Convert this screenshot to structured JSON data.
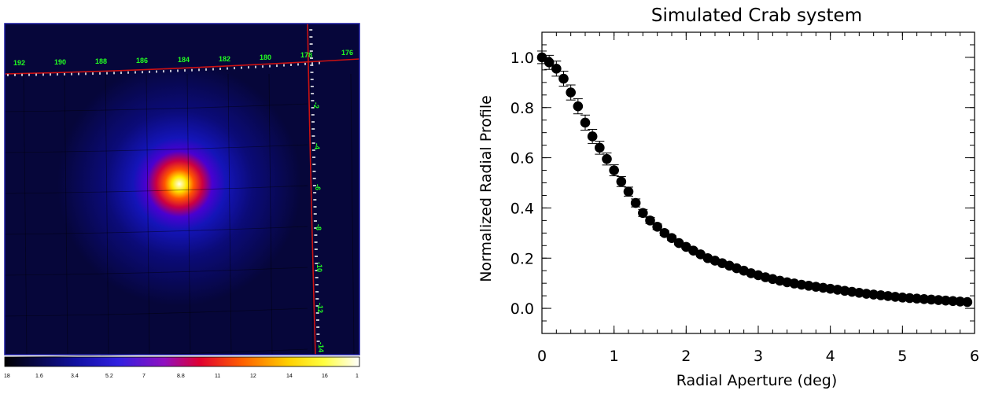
{
  "skymap": {
    "longitude_labels": [
      "192",
      "190",
      "188",
      "186",
      "184",
      "182",
      "180",
      "178",
      "176"
    ],
    "latitude_labels": [
      "-2",
      "-4",
      "-6",
      "-8",
      "-10",
      "-12",
      "-14"
    ],
    "colorbar_labels": [
      "18",
      "1.6",
      "3.4",
      "5.2",
      "7",
      "8.8",
      "11",
      "12",
      "14",
      "16",
      "1"
    ],
    "colors": {
      "background": "#06063a",
      "frame": "#1a1aa0",
      "grid_lines": "#cc1111",
      "labels": "#22ff22"
    }
  },
  "chart_data": {
    "type": "scatter",
    "title": "Simulated Crab system",
    "xlabel": "Radial Aperture (deg)",
    "ylabel": "Normalized Radial Profile",
    "xlim": [
      0,
      6
    ],
    "ylim": [
      -0.1,
      1.1
    ],
    "xticks": [
      "0",
      "1",
      "2",
      "3",
      "4",
      "5",
      "6"
    ],
    "yticks": [
      "0.0",
      "0.2",
      "0.4",
      "0.6",
      "0.8",
      "1.0"
    ],
    "ytick_values": [
      0.0,
      0.2,
      0.4,
      0.6,
      0.8,
      1.0
    ],
    "x": [
      0.0,
      0.1,
      0.2,
      0.3,
      0.4,
      0.5,
      0.6,
      0.7,
      0.8,
      0.9,
      1.0,
      1.1,
      1.2,
      1.3,
      1.4,
      1.5,
      1.6,
      1.7,
      1.8,
      1.9,
      2.0,
      2.1,
      2.2,
      2.3,
      2.4,
      2.5,
      2.6,
      2.7,
      2.8,
      2.9,
      3.0,
      3.1,
      3.2,
      3.3,
      3.4,
      3.5,
      3.6,
      3.7,
      3.8,
      3.9,
      4.0,
      4.1,
      4.2,
      4.3,
      4.4,
      4.5,
      4.6,
      4.7,
      4.8,
      4.9,
      5.0,
      5.1,
      5.2,
      5.3,
      5.4,
      5.5,
      5.6,
      5.7,
      5.8,
      5.9
    ],
    "y": [
      1.0,
      0.98,
      0.955,
      0.915,
      0.86,
      0.805,
      0.74,
      0.685,
      0.64,
      0.595,
      0.55,
      0.505,
      0.465,
      0.42,
      0.38,
      0.35,
      0.325,
      0.3,
      0.28,
      0.26,
      0.245,
      0.23,
      0.215,
      0.2,
      0.19,
      0.18,
      0.17,
      0.16,
      0.15,
      0.14,
      0.132,
      0.124,
      0.117,
      0.11,
      0.104,
      0.099,
      0.094,
      0.09,
      0.086,
      0.082,
      0.078,
      0.074,
      0.07,
      0.066,
      0.062,
      0.058,
      0.055,
      0.052,
      0.049,
      0.046,
      0.043,
      0.041,
      0.039,
      0.037,
      0.035,
      0.033,
      0.031,
      0.029,
      0.027,
      0.025
    ],
    "yerr": [
      0.025,
      0.028,
      0.03,
      0.03,
      0.03,
      0.03,
      0.03,
      0.028,
      0.026,
      0.024,
      0.022,
      0.02,
      0.018,
      0.016,
      0.014,
      0.012,
      0.011,
      0.01,
      0.009,
      0.008,
      0.007,
      0.007,
      0.006,
      0.006,
      0.005,
      0.005,
      0.005,
      0.005,
      0.004,
      0.004,
      0.004,
      0.004,
      0.004,
      0.004,
      0.003,
      0.003,
      0.003,
      0.003,
      0.003,
      0.003,
      0.003,
      0.003,
      0.003,
      0.003,
      0.003,
      0.003,
      0.003,
      0.003,
      0.003,
      0.003,
      0.003,
      0.003,
      0.003,
      0.003,
      0.003,
      0.003,
      0.003,
      0.003,
      0.003,
      0.003
    ],
    "grid": false,
    "legend": "none"
  }
}
